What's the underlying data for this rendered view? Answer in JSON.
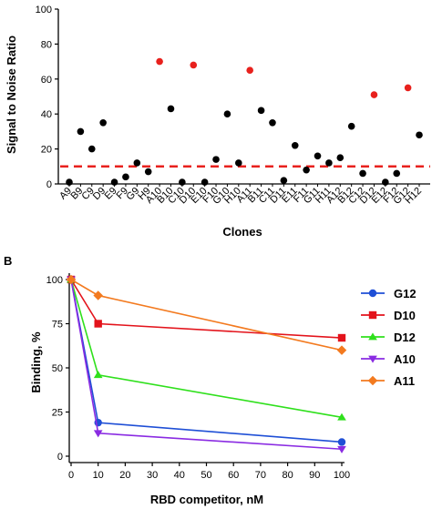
{
  "chart_data": [
    {
      "type": "scatter",
      "panel_label": "",
      "title": "",
      "xlabel": "Clones",
      "ylabel": "Signal to Noise Ratio",
      "ylim": [
        0,
        100
      ],
      "yticks": [
        0,
        20,
        40,
        60,
        80,
        100
      ],
      "threshold": 10,
      "threshold_color": "#e8211d",
      "point_color": "#000000",
      "highlight_color": "#e8211d",
      "categories": [
        "A9",
        "B9",
        "C9",
        "D9",
        "E9",
        "F9",
        "G9",
        "H9",
        "A10",
        "B10",
        "C10",
        "D10",
        "E10",
        "F10",
        "G10",
        "H10",
        "A11",
        "B11",
        "C11",
        "D11",
        "E11",
        "F11",
        "G11",
        "H11",
        "A12",
        "B12",
        "C12",
        "D12",
        "E12",
        "F12",
        "G12",
        "H12"
      ],
      "values": [
        1,
        30,
        20,
        35,
        1,
        4,
        12,
        7,
        70,
        43,
        1,
        68,
        1,
        14,
        40,
        12,
        65,
        42,
        35,
        2,
        22,
        8,
        16,
        12,
        15,
        33,
        6,
        51,
        1,
        6,
        55,
        28
      ],
      "highlighted": [
        "A10",
        "D10",
        "A11",
        "D12",
        "G12"
      ]
    },
    {
      "type": "line",
      "panel_label": "B",
      "title": "",
      "xlabel": "RBD competitor, nM",
      "ylabel": "Binding, %",
      "xlim": [
        0,
        100
      ],
      "ylim": [
        0,
        100
      ],
      "xticks": [
        0,
        10,
        20,
        30,
        40,
        50,
        60,
        70,
        80,
        90,
        100
      ],
      "yticks": [
        0,
        25,
        50,
        75,
        100
      ],
      "x": [
        0,
        10,
        100
      ],
      "legend_position": "right",
      "series": [
        {
          "name": "G12",
          "color": "#1f4fd6",
          "marker": "circle",
          "values": [
            100,
            19,
            8
          ]
        },
        {
          "name": "D10",
          "color": "#e3131b",
          "marker": "square",
          "values": [
            100,
            75,
            67
          ]
        },
        {
          "name": "D12",
          "color": "#2fe01c",
          "marker": "triangle-up",
          "values": [
            100,
            46,
            22
          ]
        },
        {
          "name": "A10",
          "color": "#8a2be2",
          "marker": "triangle-down",
          "values": [
            100,
            13,
            4
          ]
        },
        {
          "name": "A11",
          "color": "#f37a1f",
          "marker": "diamond",
          "values": [
            100,
            91,
            60
          ]
        }
      ]
    }
  ]
}
